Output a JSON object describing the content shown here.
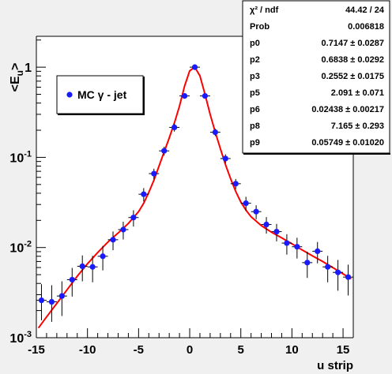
{
  "chart_data": {
    "type": "scatter",
    "title": "",
    "xlabel": "u strip",
    "ylabel_main": "<E",
    "ylabel_sub": "u",
    "ylabel_close": ">",
    "xlim": [
      -15,
      16
    ],
    "ylim": [
      0.001,
      2.2
    ],
    "yscale": "log",
    "xticks": [
      -15,
      -10,
      -5,
      0,
      5,
      10,
      15
    ],
    "yticks": [
      {
        "value": 1,
        "label": "1",
        "sup": ""
      },
      {
        "value": 0.1,
        "label": "10",
        "sup": "-1"
      },
      {
        "value": 0.01,
        "label": "10",
        "sup": "-2"
      },
      {
        "value": 0.001,
        "label": "10",
        "sup": "-3"
      }
    ],
    "grid": false,
    "legend": {
      "position": "upper-left",
      "label": "MC γ - jet"
    },
    "series": [
      {
        "name": "MC γ - jet",
        "marker": "circle",
        "color": "#1a1aff",
        "x": [
          -14.5,
          -13.5,
          -12.5,
          -11.5,
          -10.5,
          -9.5,
          -8.5,
          -7.5,
          -6.5,
          -5.5,
          -4.5,
          -3.5,
          -2.5,
          -1.5,
          -0.5,
          0.5,
          1.5,
          2.5,
          3.5,
          4.5,
          5.5,
          6.5,
          7.5,
          8.5,
          9.5,
          10.5,
          11.5,
          12.5,
          13.5,
          14.5,
          15.5
        ],
        "y": [
          0.0026,
          0.0025,
          0.0029,
          0.0044,
          0.0062,
          0.0061,
          0.008,
          0.0122,
          0.0158,
          0.0215,
          0.039,
          0.066,
          0.118,
          0.215,
          0.48,
          1.0,
          0.48,
          0.19,
          0.097,
          0.051,
          0.031,
          0.025,
          0.018,
          0.015,
          0.0112,
          0.0102,
          0.0068,
          0.0091,
          0.0061,
          0.0053,
          0.0047
        ],
        "yerr": [
          0.0006,
          0.0006,
          0.0006,
          0.0007,
          0.0009,
          0.0009,
          0.0011,
          0.0013,
          0.0016,
          0.002,
          0.003,
          0.004,
          0.006,
          0.01,
          0.015,
          0.02,
          0.015,
          0.008,
          0.005,
          0.003,
          0.0025,
          0.002,
          0.0017,
          0.0015,
          0.0013,
          0.0012,
          0.001,
          0.0011,
          0.0009,
          0.0009,
          0.0008
        ]
      }
    ],
    "fit": {
      "name": "fit",
      "color": "#ff0000",
      "x": [
        -14.8,
        -14,
        -13,
        -12,
        -11,
        -10,
        -9,
        -8,
        -7,
        -6,
        -5,
        -4.5,
        -4,
        -3.5,
        -3,
        -2.5,
        -2,
        -1.5,
        -1,
        -0.5,
        0,
        0.5,
        1,
        1.5,
        2,
        2.5,
        3,
        3.5,
        4,
        4.5,
        5,
        5.5,
        6,
        7,
        8,
        9,
        10,
        11,
        12,
        13,
        14,
        15,
        15.8
      ],
      "y": [
        0.00128,
        0.0017,
        0.0024,
        0.0034,
        0.0048,
        0.0066,
        0.0088,
        0.0115,
        0.0145,
        0.0185,
        0.025,
        0.031,
        0.041,
        0.056,
        0.08,
        0.115,
        0.165,
        0.24,
        0.37,
        0.62,
        0.91,
        1.0,
        0.8,
        0.5,
        0.3,
        0.19,
        0.125,
        0.083,
        0.058,
        0.042,
        0.032,
        0.026,
        0.022,
        0.0175,
        0.0148,
        0.0128,
        0.011,
        0.0094,
        0.0081,
        0.007,
        0.006,
        0.0051,
        0.0045
      ]
    },
    "stats_box": {
      "rows": [
        {
          "label": "χ² / ndf",
          "value": "44.42 / 24"
        },
        {
          "label": "Prob",
          "value": "0.006818"
        },
        {
          "label": "p0",
          "value": "0.7147 ± 0.0287"
        },
        {
          "label": "p2",
          "value": "0.6838 ± 0.0292"
        },
        {
          "label": "p3",
          "value": "0.2552 ± 0.0175"
        },
        {
          "label": "p5",
          "value": "2.091 ± 0.071"
        },
        {
          "label": "p6",
          "value": "0.02438 ± 0.00217"
        },
        {
          "label": "p8",
          "value": "7.165 ± 0.293"
        },
        {
          "label": "p9",
          "value": "0.05749 ± 0.01020"
        }
      ]
    },
    "colors": {
      "frame_background": "#ffffff",
      "outer_background": "#f0f0f0",
      "marker": "#1a1aff",
      "fit_line": "#ff0000"
    }
  }
}
